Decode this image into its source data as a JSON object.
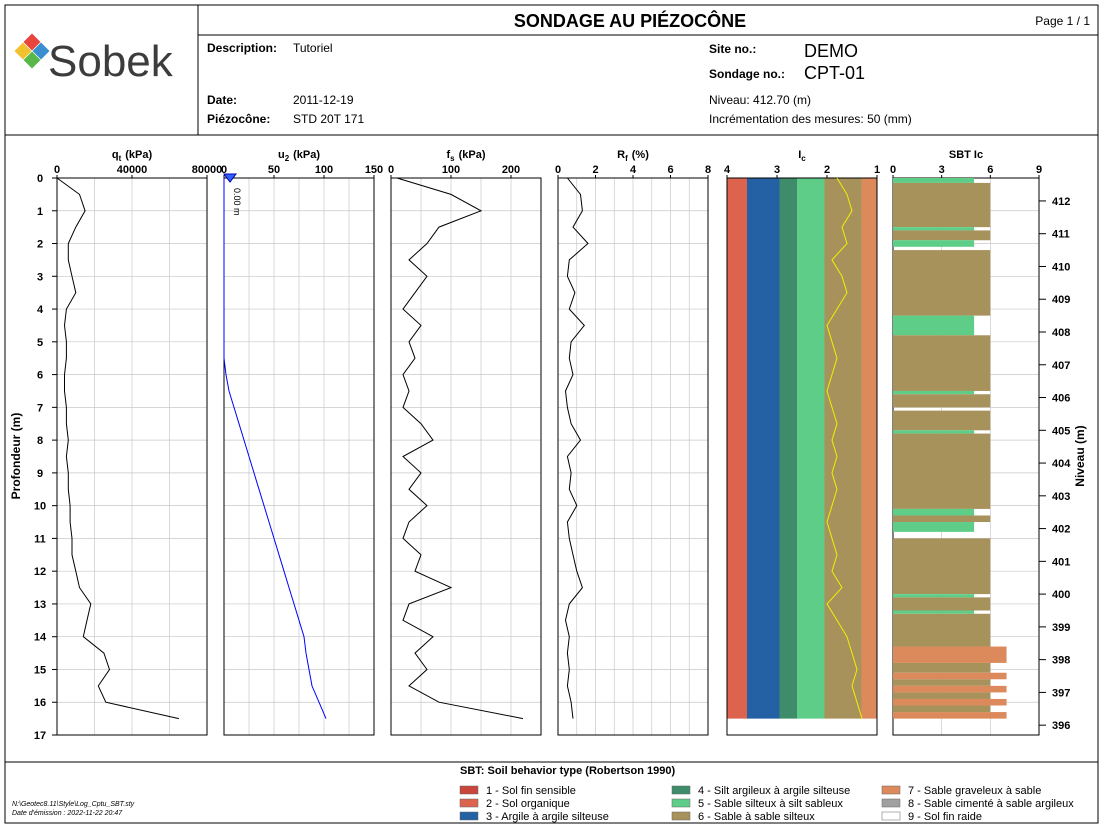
{
  "header": {
    "logo": "Sobek",
    "title": "SONDAGE AU PIÉZOCÔNE",
    "page": "Page 1 / 1",
    "description_label": "Description:",
    "description": "Tutoriel",
    "date_label": "Date:",
    "date": "2011-12-19",
    "piezocone_label": "Piézocône:",
    "piezocone": "STD 20T 171",
    "site_label": "Site no.:",
    "site": "DEMO",
    "sondage_label": "Sondage no.:",
    "sondage": "CPT-01",
    "niveau": "Niveau: 412.70  (m)",
    "increment": "Incrémentation des mesures: 50  (mm)"
  },
  "depth_axis": {
    "label": "Profondeur (m)",
    "ylim": [
      0,
      17
    ],
    "yticks": [
      0,
      1,
      2,
      3,
      4,
      5,
      6,
      7,
      8,
      9,
      10,
      11,
      12,
      13,
      14,
      15,
      16,
      17
    ]
  },
  "elevation_axis": {
    "label": "Niveau (m)",
    "ylim": [
      412.7,
      395.7
    ],
    "yticks": [
      412,
      411,
      410,
      409,
      408,
      407,
      406,
      405,
      404,
      403,
      402,
      401,
      400,
      399,
      398,
      397,
      396
    ]
  },
  "chart_data": [
    {
      "type": "line",
      "title": "q",
      "title_sub": "t",
      "title_unit": "(kPa)",
      "xlim": [
        0,
        80000
      ],
      "xticks": [
        0,
        40000,
        80000
      ],
      "xgrid": [
        20000,
        40000,
        60000
      ],
      "color": "#000000",
      "depth": [
        0,
        0.5,
        1,
        1.5,
        2,
        2.5,
        3,
        3.5,
        4,
        4.5,
        5,
        5.5,
        6,
        6.5,
        7,
        7.5,
        8,
        8.5,
        9,
        9.5,
        10,
        10.5,
        11,
        11.5,
        12,
        12.5,
        13,
        13.5,
        14,
        14.5,
        15,
        15.5,
        16,
        16.5
      ],
      "values": [
        0,
        12000,
        15000,
        10000,
        6000,
        6000,
        8000,
        10000,
        5000,
        4000,
        5000,
        5000,
        4000,
        4000,
        5000,
        5000,
        6000,
        5000,
        6000,
        6000,
        7000,
        7000,
        8000,
        8000,
        10000,
        12000,
        18000,
        16000,
        14000,
        25000,
        28000,
        22000,
        26000,
        65000
      ]
    },
    {
      "type": "line",
      "title": "u",
      "title_sub": "2",
      "title_unit": "(kPa)",
      "xlim": [
        0,
        150
      ],
      "xticks": [
        0,
        50,
        100,
        150
      ],
      "xgrid": [
        25,
        50,
        75,
        100,
        125
      ],
      "color": "#0000ff",
      "annotation": "0.00 m",
      "marker_depth": 0,
      "depth": [
        0,
        0.5,
        1,
        1.5,
        2,
        2.5,
        3,
        3.5,
        4,
        4.5,
        5,
        5.5,
        6,
        6.5,
        7,
        7.5,
        8,
        8.5,
        9,
        9.5,
        10,
        10.5,
        11,
        11.5,
        12,
        12.5,
        13,
        13.5,
        14,
        14.5,
        15,
        15.5,
        16,
        16.5
      ],
      "values": [
        0,
        0,
        0,
        0,
        0,
        0,
        0,
        0,
        0,
        0,
        0,
        0,
        2,
        5,
        10,
        15,
        20,
        25,
        30,
        35,
        40,
        45,
        50,
        55,
        60,
        65,
        70,
        75,
        80,
        82,
        85,
        88,
        95,
        102
      ]
    },
    {
      "type": "line",
      "title": "f",
      "title_sub": "s",
      "title_unit": "(kPa)",
      "xlim": [
        0,
        250
      ],
      "xticks": [
        0,
        100,
        200
      ],
      "xgrid": [
        50,
        100,
        150,
        200
      ],
      "color": "#000000",
      "depth": [
        0,
        0.5,
        1,
        1.5,
        2,
        2.5,
        3,
        3.5,
        4,
        4.5,
        5,
        5.5,
        6,
        6.5,
        7,
        7.5,
        8,
        8.5,
        9,
        9.5,
        10,
        10.5,
        11,
        11.5,
        12,
        12.5,
        13,
        13.5,
        14,
        14.5,
        15,
        15.5,
        16,
        16.5
      ],
      "values": [
        10,
        100,
        150,
        80,
        60,
        30,
        60,
        40,
        20,
        50,
        30,
        40,
        20,
        30,
        20,
        50,
        70,
        20,
        50,
        30,
        60,
        30,
        20,
        50,
        40,
        100,
        30,
        20,
        70,
        40,
        60,
        30,
        80,
        220
      ]
    },
    {
      "type": "line",
      "title": "R",
      "title_sub": "f",
      "title_unit": "(%)",
      "xlim": [
        0,
        8
      ],
      "xticks": [
        0,
        2,
        4,
        6,
        8
      ],
      "xgrid": [
        1,
        2,
        3,
        4,
        5,
        6,
        7
      ],
      "color": "#000000",
      "depth": [
        0,
        0.5,
        1,
        1.5,
        2,
        2.5,
        3,
        3.5,
        4,
        4.5,
        5,
        5.5,
        6,
        6.5,
        7,
        7.5,
        8,
        8.5,
        9,
        9.5,
        10,
        10.5,
        11,
        11.5,
        12,
        12.5,
        13,
        13.5,
        14,
        14.5,
        15,
        15.5,
        16,
        16.5
      ],
      "values": [
        0.5,
        1.2,
        1.3,
        0.8,
        1.6,
        0.6,
        0.5,
        0.9,
        0.6,
        1.4,
        0.7,
        0.6,
        0.8,
        0.4,
        0.5,
        0.7,
        1.2,
        0.5,
        0.7,
        0.6,
        1.0,
        0.5,
        0.6,
        0.8,
        1.0,
        1.3,
        0.6,
        0.4,
        0.6,
        0.5,
        0.6,
        0.5,
        0.7,
        0.8
      ]
    },
    {
      "type": "line",
      "title": "I",
      "title_sub": "c",
      "xlim": [
        4,
        1
      ],
      "xticks": [
        4,
        3,
        2,
        1
      ],
      "xgrid": [],
      "color": "#f0f000",
      "bands": {
        "edges": [
          4,
          3.6,
          2.95,
          2.6,
          2.05,
          1.31,
          1
        ],
        "zones": [
          2,
          3,
          4,
          5,
          6,
          7
        ]
      },
      "depth": [
        0,
        0.5,
        1,
        1.5,
        2,
        2.5,
        3,
        3.5,
        4,
        4.5,
        5,
        5.5,
        6,
        6.5,
        7,
        7.5,
        8,
        8.5,
        9,
        9.5,
        10,
        10.5,
        11,
        11.5,
        12,
        12.5,
        13,
        13.5,
        14,
        14.5,
        15,
        15.5,
        16,
        16.5
      ],
      "values": [
        1.8,
        1.6,
        1.5,
        1.7,
        1.6,
        1.9,
        1.7,
        1.6,
        1.8,
        2.0,
        1.9,
        1.8,
        1.9,
        2.0,
        1.9,
        1.8,
        1.9,
        1.8,
        1.9,
        1.8,
        1.9,
        2.0,
        1.9,
        1.8,
        1.9,
        1.7,
        2.0,
        1.8,
        1.6,
        1.5,
        1.4,
        1.5,
        1.4,
        1.3
      ]
    },
    {
      "type": "bar",
      "title": "SBT Ic",
      "xlim": [
        0,
        9
      ],
      "xticks": [
        0,
        3,
        6,
        9
      ],
      "xgrid": [
        3,
        6
      ],
      "top": [
        0,
        0.15,
        1.5,
        1.6,
        1.9,
        2.2,
        4.2,
        4.8,
        6.5,
        6.6,
        7.1,
        7.7,
        7.8,
        10.1,
        10.3,
        10.5,
        11.0,
        12.7,
        12.8,
        13.2,
        13.3,
        14.3,
        14.8,
        15.1,
        15.3,
        15.5,
        15.7,
        15.9,
        16.1,
        16.3
      ],
      "bottom": [
        0.15,
        1.5,
        1.6,
        1.9,
        2.1,
        4.2,
        4.8,
        6.5,
        6.6,
        7.0,
        7.7,
        7.8,
        10.1,
        10.3,
        10.5,
        10.8,
        12.7,
        12.8,
        13.2,
        13.3,
        14.3,
        14.8,
        15.1,
        15.3,
        15.5,
        15.7,
        15.9,
        16.1,
        16.3,
        16.5
      ],
      "values": [
        5,
        6,
        5,
        6,
        5,
        6,
        5,
        6,
        5,
        6,
        6,
        5,
        6,
        5,
        6,
        5,
        6,
        5,
        6,
        5,
        6,
        7,
        6,
        7,
        6,
        7,
        6,
        7,
        6,
        7
      ]
    }
  ],
  "legend": {
    "title": "SBT: Soil behavior type (Robertson 1990)",
    "items": [
      {
        "label": "1 - Sol fin sensible",
        "color": "#c8463c"
      },
      {
        "label": "2 - Sol organique",
        "color": "#dc644e"
      },
      {
        "label": "3 - Argile à argile silteuse",
        "color": "#2460a4"
      },
      {
        "label": "4 - Silt argileux à argile silteuse",
        "color": "#3f8c6a"
      },
      {
        "label": "5 - Sable silteux à silt sableux",
        "color": "#5ecd88"
      },
      {
        "label": "6 - Sable à sable silteux",
        "color": "#a8925c"
      },
      {
        "label": "7 - Sable graveleux à sable",
        "color": "#dc8a5c"
      },
      {
        "label": "8 - Sable cimenté à sable argileux",
        "color": "#a0a0a0"
      },
      {
        "label": "9 - Sol fin raide",
        "color": "#ffffff"
      }
    ]
  },
  "footer": {
    "style_path": "N:\\Geotec8.11\\Style\\Log_Cptu_SBT.sty",
    "issued": "Date d'émission : 2022-11-22 20:47"
  }
}
